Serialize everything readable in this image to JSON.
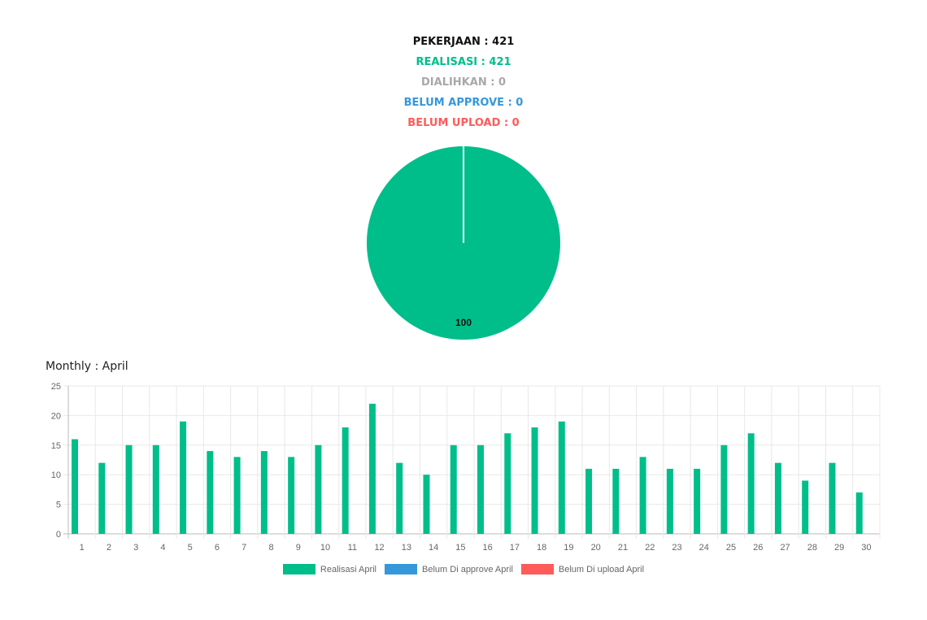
{
  "stats": {
    "pekerjaan": "PEKERJAAN : 421",
    "realisasi": "REALISASI : 421",
    "dialihkan": "DIALIHKAN : 0",
    "belum_approve": "BELUM APPROVE : 0",
    "belum_upload": "BELUM UPLOAD : 0"
  },
  "colors": {
    "pekerjaan": "#111111",
    "realisasi": "#00be8a",
    "dialihkan": "#a8a8a8",
    "belum_approve": "#3498db",
    "belum_upload": "#ff5b5b"
  },
  "monthly_title": "Monthly : April",
  "chart_data": [
    {
      "type": "pie",
      "slices": [
        {
          "name": "Realisasi",
          "value": 100,
          "label": "100",
          "color": "#00be8a"
        },
        {
          "name": "Dialihkan",
          "value": 0,
          "label": "",
          "color": "#a8a8a8"
        },
        {
          "name": "Belum Approve",
          "value": 0,
          "label": "",
          "color": "#3498db"
        },
        {
          "name": "Belum Upload",
          "value": 0,
          "label": "",
          "color": "#ff5b5b"
        }
      ]
    },
    {
      "type": "bar",
      "categories": [
        "1",
        "2",
        "3",
        "4",
        "5",
        "6",
        "7",
        "8",
        "9",
        "10",
        "11",
        "12",
        "13",
        "14",
        "15",
        "16",
        "17",
        "18",
        "19",
        "20",
        "21",
        "22",
        "23",
        "24",
        "25",
        "26",
        "27",
        "28",
        "29",
        "30"
      ],
      "series": [
        {
          "name": "Realisasi April",
          "color": "#00be8a",
          "values": [
            16,
            12,
            15,
            15,
            19,
            14,
            13,
            14,
            13,
            15,
            18,
            22,
            12,
            10,
            15,
            15,
            17,
            18,
            19,
            11,
            11,
            13,
            11,
            11,
            15,
            17,
            12,
            9,
            12,
            7
          ]
        },
        {
          "name": "Belum Di approve April",
          "color": "#3498db",
          "values": [
            0,
            0,
            0,
            0,
            0,
            0,
            0,
            0,
            0,
            0,
            0,
            0,
            0,
            0,
            0,
            0,
            0,
            0,
            0,
            0,
            0,
            0,
            0,
            0,
            0,
            0,
            0,
            0,
            0,
            0
          ]
        },
        {
          "name": "Belum Di upload April",
          "color": "#ff5b5b",
          "values": [
            0,
            0,
            0,
            0,
            0,
            0,
            0,
            0,
            0,
            0,
            0,
            0,
            0,
            0,
            0,
            0,
            0,
            0,
            0,
            0,
            0,
            0,
            0,
            0,
            0,
            0,
            0,
            0,
            0,
            0
          ]
        }
      ],
      "ylim": [
        0,
        25
      ],
      "yticks": [
        0,
        5,
        10,
        15,
        20,
        25
      ],
      "grid": true,
      "legend": "bottom"
    }
  ]
}
